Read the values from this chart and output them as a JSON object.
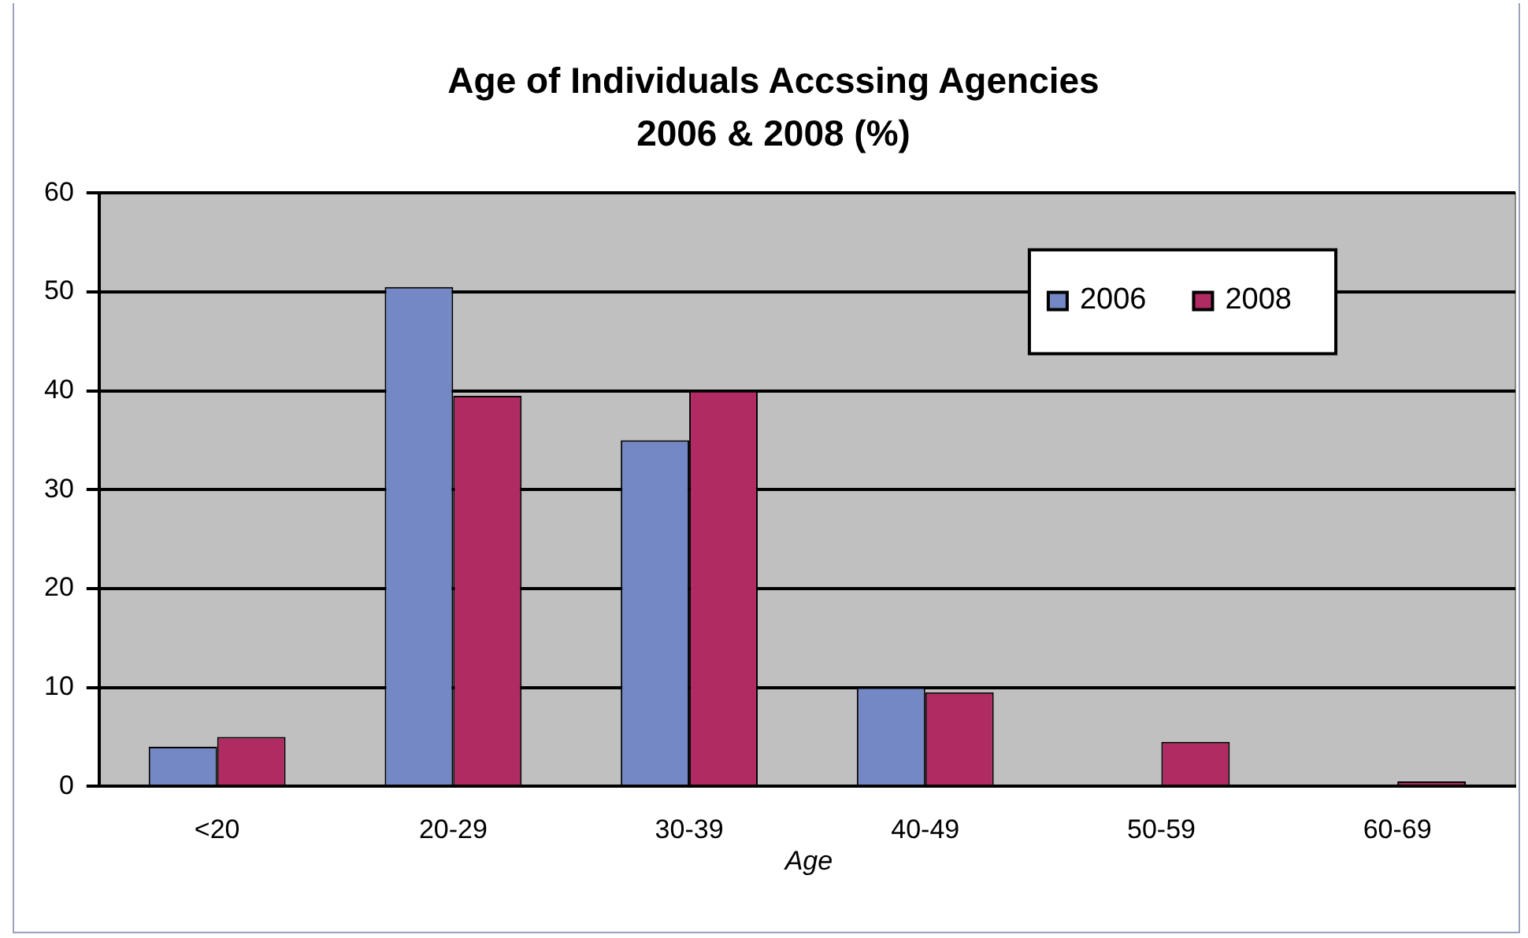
{
  "chart_data": {
    "type": "bar",
    "title": [
      "Age of Individuals Accssing Agencies",
      "2006 & 2008 (%)"
    ],
    "xlabel": "Age",
    "categories": [
      "<20",
      "20-29",
      "30-39",
      "40-49",
      "50-59",
      "60-69"
    ],
    "series": [
      {
        "name": "2006",
        "color": "#7388c4",
        "values": [
          4,
          50.5,
          35,
          10,
          0,
          0
        ]
      },
      {
        "name": "2008",
        "color": "#b02b62",
        "values": [
          5,
          39.5,
          40,
          9.5,
          4.5,
          0.5
        ]
      }
    ],
    "ylim": [
      0,
      60
    ],
    "yticks": [
      0,
      10,
      20,
      30,
      40,
      50,
      60
    ],
    "grid": "y",
    "legend": "top right"
  }
}
